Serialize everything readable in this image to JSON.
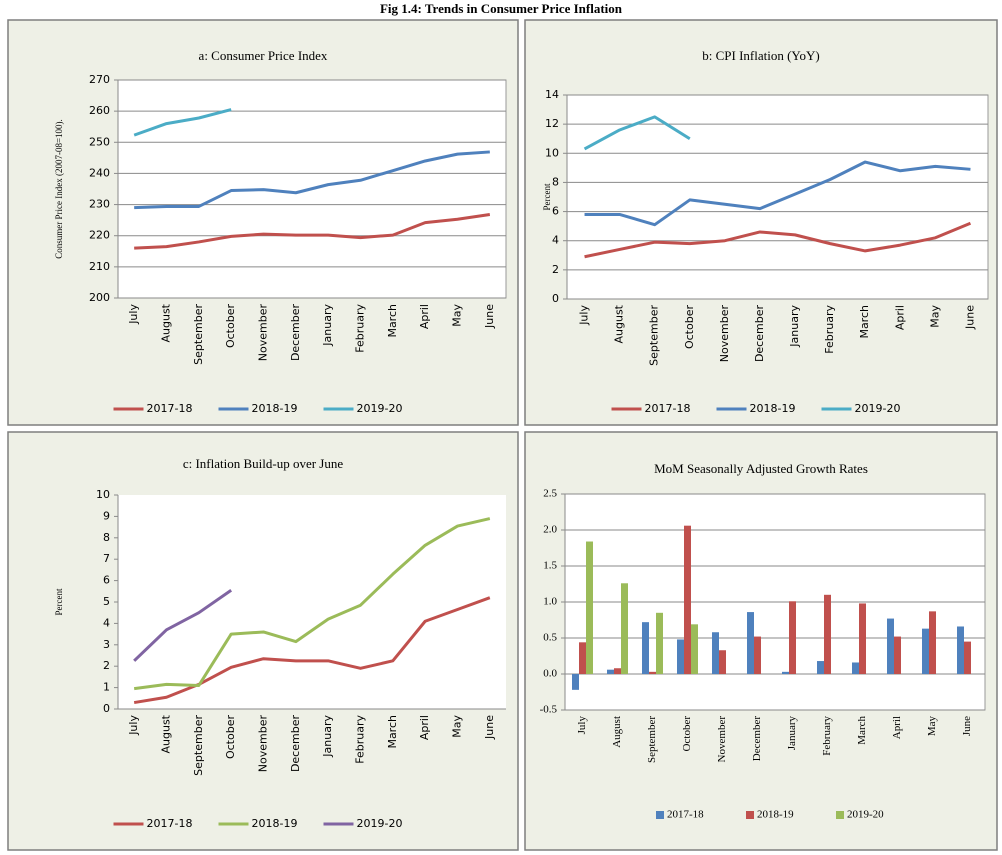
{
  "title": "Fig 1.4: Trends in Consumer Price Inflation",
  "chart_data": [
    {
      "type": "line",
      "title": "a: Consumer Price Index",
      "ylabel": "Consumer Price Index (2007-08=100).",
      "categories": [
        "July",
        "August",
        "September",
        "October",
        "November",
        "December",
        "January",
        "February",
        "March",
        "April",
        "May",
        "June"
      ],
      "ylim": [
        200,
        270
      ],
      "yticks": [
        200,
        210,
        220,
        230,
        240,
        250,
        260,
        270
      ],
      "grid": true,
      "series": [
        {
          "name": "2017-18",
          "color": "#c0504d",
          "values": [
            216,
            216.5,
            218,
            219.8,
            220.5,
            220.2,
            220.2,
            219.4,
            220.2,
            224.2,
            225.3,
            226.8
          ]
        },
        {
          "name": "2018-19",
          "color": "#4f81bd",
          "values": [
            229,
            229.4,
            229.4,
            234.5,
            234.8,
            233.8,
            236.4,
            237.8,
            240.9,
            244,
            246.2,
            246.9
          ]
        },
        {
          "name": "2019-20",
          "color": "#4bacc6",
          "values": [
            252.3,
            256,
            257.8,
            260.5,
            null,
            null,
            null,
            null,
            null,
            null,
            null,
            null
          ]
        }
      ]
    },
    {
      "type": "line",
      "title": "b: CPI Inflation (YoY)",
      "ylabel": "Percent",
      "categories": [
        "July",
        "August",
        "September",
        "October",
        "November",
        "December",
        "January",
        "February",
        "March",
        "April",
        "May",
        "June"
      ],
      "ylim": [
        0,
        14
      ],
      "yticks": [
        0,
        2,
        4,
        6,
        8,
        10,
        12,
        14
      ],
      "grid": true,
      "series": [
        {
          "name": "2017-18",
          "color": "#c0504d",
          "values": [
            2.9,
            3.4,
            3.9,
            3.8,
            4.0,
            4.6,
            4.4,
            3.8,
            3.3,
            3.7,
            4.2,
            5.2
          ]
        },
        {
          "name": "2018-19",
          "color": "#4f81bd",
          "values": [
            5.8,
            5.8,
            5.1,
            6.8,
            6.5,
            6.2,
            7.2,
            8.2,
            9.4,
            8.8,
            9.1,
            8.9
          ]
        },
        {
          "name": "2019-20",
          "color": "#4bacc6",
          "values": [
            10.3,
            11.6,
            12.5,
            11.0,
            null,
            null,
            null,
            null,
            null,
            null,
            null,
            null
          ]
        }
      ]
    },
    {
      "type": "line",
      "title": "c: Inflation Build-up over June",
      "ylabel": "Percent",
      "categories": [
        "July",
        "August",
        "September",
        "October",
        "November",
        "December",
        "January",
        "February",
        "March",
        "April",
        "May",
        "June"
      ],
      "ylim": [
        0,
        10
      ],
      "yticks": [
        0,
        1,
        2,
        3,
        4,
        5,
        6,
        7,
        8,
        9,
        10
      ],
      "grid": false,
      "series": [
        {
          "name": "2017-18",
          "color": "#c0504d",
          "values": [
            0.3,
            0.55,
            1.15,
            1.95,
            2.35,
            2.25,
            2.25,
            1.9,
            2.25,
            4.1,
            4.65,
            5.2
          ]
        },
        {
          "name": "2018-19",
          "color": "#9bbb59",
          "values": [
            0.95,
            1.15,
            1.1,
            3.5,
            3.6,
            3.15,
            4.2,
            4.85,
            6.3,
            7.65,
            8.55,
            8.9
          ]
        },
        {
          "name": "2019-20",
          "color": "#8064a2",
          "values": [
            2.25,
            3.7,
            4.5,
            5.55,
            null,
            null,
            null,
            null,
            null,
            null,
            null,
            null
          ]
        }
      ]
    },
    {
      "type": "bar",
      "title": "MoM Seasonally Adjusted Growth Rates",
      "categories": [
        "July",
        "August",
        "September",
        "October",
        "November",
        "December",
        "January",
        "February",
        "March",
        "April",
        "May",
        "June"
      ],
      "ylim": [
        -0.5,
        2.5
      ],
      "yticks": [
        -0.5,
        {
          "value": 0,
          "label": "0.0"
        },
        0.5,
        {
          "value": 1,
          "label": "1.0"
        },
        1.5,
        {
          "value": 2,
          "label": "2.0"
        },
        2.5
      ],
      "grid": true,
      "series": [
        {
          "name": "2017-18",
          "color": "#4f81bd",
          "values": [
            -0.22,
            0.06,
            0.72,
            0.48,
            0.58,
            0.86,
            0.03,
            0.18,
            0.16,
            0.77,
            0.63,
            0.66
          ]
        },
        {
          "name": "2018-19",
          "color": "#c0504d",
          "values": [
            0.44,
            0.08,
            0.03,
            2.06,
            0.33,
            0.52,
            1.01,
            1.1,
            0.98,
            0.52,
            0.87,
            0.45
          ]
        },
        {
          "name": "2019-20",
          "color": "#9bbb59",
          "values": [
            1.84,
            1.26,
            0.85,
            0.69,
            null,
            null,
            null,
            null,
            null,
            null,
            null,
            null
          ]
        }
      ]
    }
  ]
}
